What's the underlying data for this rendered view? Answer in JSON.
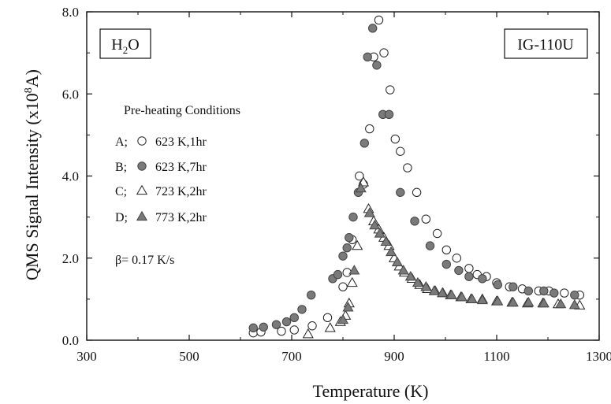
{
  "chart_data": {
    "type": "scatter",
    "xlabel": "Temperature (K)",
    "ylabel": "QMS Signal Intensity (x10",
    "ylabel_exp": "8",
    "ylabel_unit": "A)",
    "xlim": [
      300,
      1300
    ],
    "ylim": [
      0,
      8
    ],
    "xticks": [
      300,
      500,
      700,
      900,
      1100,
      1300
    ],
    "yticks": [
      0.0,
      2.0,
      4.0,
      6.0,
      8.0
    ],
    "xtick_labels": [
      "300",
      "500",
      "700",
      "900",
      "1100",
      "1300"
    ],
    "ytick_labels": [
      "0.0",
      "2.0",
      "4.0",
      "6.0",
      "8.0"
    ],
    "grid": false,
    "species_main": "H",
    "species_sub": "2",
    "species_rest": "O",
    "sample_label": "IG-110U",
    "legend_title": "Pre-heating Conditions",
    "legend_placement": "left",
    "rate_label": "β= 0.17 K/s",
    "series": [
      {
        "name": "623 K,1hr",
        "prefix": "A;",
        "marker": "circle-open",
        "x": [
          625,
          640,
          680,
          705,
          740,
          770,
          800,
          808,
          818,
          832,
          840,
          852,
          860,
          870,
          880,
          892,
          902,
          912,
          926,
          944,
          962,
          984,
          1002,
          1022,
          1046,
          1062,
          1080,
          1100,
          1125,
          1150,
          1182,
          1202,
          1232,
          1262
        ],
        "y": [
          0.18,
          0.2,
          0.22,
          0.25,
          0.35,
          0.55,
          1.3,
          1.65,
          2.45,
          4.0,
          3.8,
          5.15,
          6.9,
          7.8,
          7.0,
          6.1,
          4.9,
          4.6,
          4.2,
          3.6,
          2.95,
          2.6,
          2.2,
          2.0,
          1.75,
          1.6,
          1.55,
          1.4,
          1.3,
          1.25,
          1.2,
          1.2,
          1.15,
          1.1
        ]
      },
      {
        "name": "623 K,7hr",
        "prefix": "B;",
        "marker": "circle-filled",
        "x": [
          625,
          645,
          670,
          690,
          705,
          720,
          738,
          780,
          790,
          800,
          808,
          812,
          820,
          830,
          842,
          848,
          858,
          866,
          878,
          890,
          912,
          940,
          970,
          1002,
          1026,
          1046,
          1072,
          1102,
          1132,
          1162,
          1192,
          1212,
          1252
        ],
        "y": [
          0.3,
          0.32,
          0.38,
          0.45,
          0.55,
          0.75,
          1.1,
          1.5,
          1.6,
          2.05,
          2.25,
          2.5,
          3.0,
          3.6,
          4.8,
          6.9,
          7.6,
          6.7,
          5.5,
          5.5,
          3.6,
          2.9,
          2.3,
          1.85,
          1.7,
          1.55,
          1.5,
          1.35,
          1.3,
          1.2,
          1.2,
          1.15,
          1.1
        ]
      },
      {
        "name": "723 K,2hr",
        "prefix": "C;",
        "marker": "triangle-open",
        "x": [
          732,
          775,
          795,
          805,
          812,
          818,
          828,
          840,
          850,
          860,
          870,
          880,
          890,
          900,
          910,
          920,
          935,
          950,
          965,
          980,
          995,
          1010,
          1030,
          1050,
          1072,
          1100,
          1130,
          1160,
          1190,
          1220,
          1262
        ],
        "y": [
          0.15,
          0.3,
          0.45,
          0.6,
          0.9,
          1.4,
          2.3,
          3.85,
          3.2,
          2.9,
          2.7,
          2.5,
          2.3,
          2.0,
          1.8,
          1.65,
          1.5,
          1.35,
          1.25,
          1.2,
          1.15,
          1.1,
          1.05,
          1.0,
          1.0,
          0.95,
          0.92,
          0.9,
          0.9,
          0.88,
          0.85
        ]
      },
      {
        "name": "773 K,2hr",
        "prefix": "D;",
        "marker": "triangle-filled",
        "x": [
          800,
          810,
          822,
          835,
          852,
          862,
          872,
          884,
          894,
          906,
          918,
          932,
          946,
          962,
          978,
          994,
          1012,
          1032,
          1052,
          1072,
          1102,
          1132,
          1162,
          1192,
          1225,
          1252
        ],
        "y": [
          0.5,
          0.8,
          1.7,
          3.7,
          3.1,
          2.8,
          2.6,
          2.4,
          2.15,
          1.9,
          1.7,
          1.55,
          1.4,
          1.3,
          1.2,
          1.15,
          1.1,
          1.05,
          1.0,
          0.98,
          0.95,
          0.92,
          0.92,
          0.9,
          0.88,
          0.86
        ]
      }
    ]
  }
}
